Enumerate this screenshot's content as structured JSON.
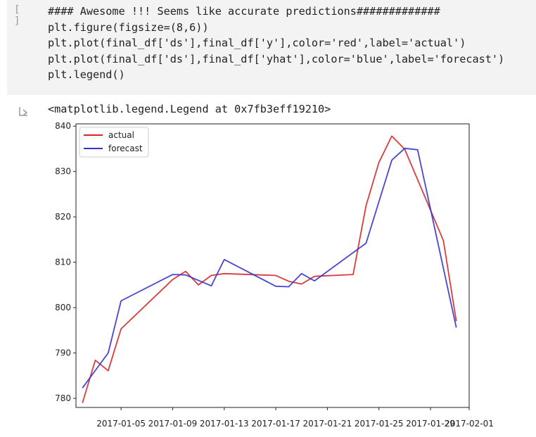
{
  "cell": {
    "run_indicator": "[ ]",
    "code_lines": [
      "#### Awesome !!! Seems like accurate predictions#############",
      "plt.figure(figsize=(8,6))",
      "plt.plot(final_df['ds'],final_df['y'],color='red',label='actual')",
      "plt.plot(final_df['ds'],final_df['yhat'],color='blue',label='forecast')",
      "plt.legend()"
    ]
  },
  "output": {
    "icon": "output-arrow-icon",
    "text": "<matplotlib.legend.Legend at 0x7fb3eff19210>"
  },
  "chart_data": {
    "type": "line",
    "title": "",
    "xlabel": "",
    "ylabel": "",
    "ylim": [
      778,
      840.5
    ],
    "xlim": [
      "2017-01-01T12:00",
      "2017-02-01"
    ],
    "grid": false,
    "legend_position": "top-left",
    "x_ticks": [
      "2017-01-05",
      "2017-01-09",
      "2017-01-13",
      "2017-01-17",
      "2017-01-21",
      "2017-01-25",
      "2017-01-29",
      "2017-02-01"
    ],
    "y_ticks": [
      780,
      790,
      800,
      810,
      820,
      830,
      840
    ],
    "series": [
      {
        "name": "actual",
        "color": "#d62728",
        "x": [
          "2017-01-02",
          "2017-01-03",
          "2017-01-04",
          "2017-01-05",
          "2017-01-09",
          "2017-01-10",
          "2017-01-11",
          "2017-01-12",
          "2017-01-13",
          "2017-01-17",
          "2017-01-18",
          "2017-01-19",
          "2017-01-20",
          "2017-01-23",
          "2017-01-24",
          "2017-01-25",
          "2017-01-26",
          "2017-01-27",
          "2017-01-30",
          "2017-01-31"
        ],
        "values": [
          779.0,
          788.4,
          786.1,
          795.3,
          806.2,
          808.0,
          805.0,
          807.1,
          807.5,
          807.1,
          805.8,
          805.2,
          806.9,
          807.3,
          822.5,
          832.0,
          837.8,
          834.9,
          814.8,
          797.0
        ]
      },
      {
        "name": "forecast",
        "color": "#3333cc",
        "x": [
          "2017-01-02",
          "2017-01-04",
          "2017-01-05",
          "2017-01-09",
          "2017-01-10",
          "2017-01-12",
          "2017-01-13",
          "2017-01-17",
          "2017-01-18",
          "2017-01-19",
          "2017-01-20",
          "2017-01-24",
          "2017-01-26",
          "2017-01-27",
          "2017-01-28",
          "2017-01-30",
          "2017-01-31"
        ],
        "values": [
          782.3,
          790.0,
          801.5,
          807.3,
          807.2,
          804.8,
          810.6,
          804.7,
          804.6,
          807.5,
          805.9,
          814.2,
          832.5,
          835.1,
          834.8,
          808.7,
          795.6
        ]
      }
    ]
  }
}
